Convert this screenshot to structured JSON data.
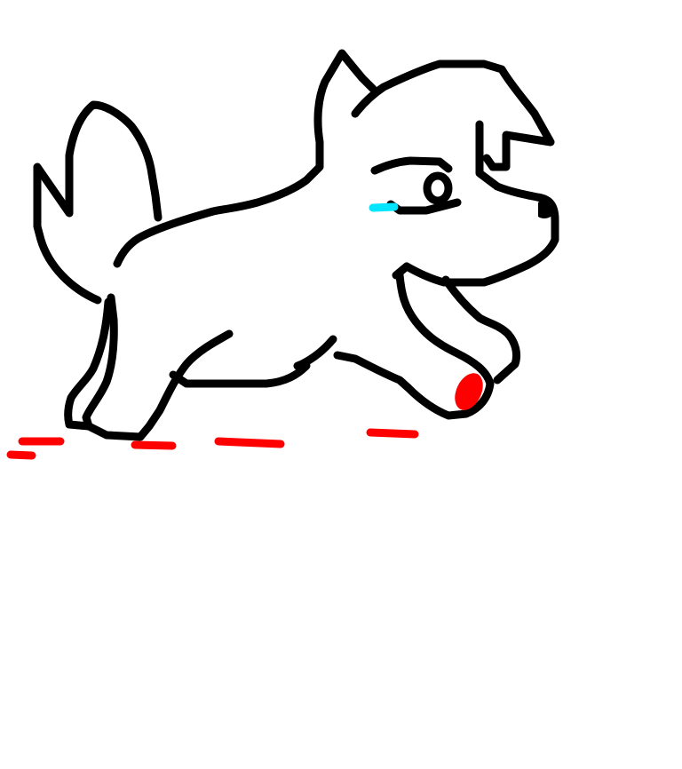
{
  "canvas": {
    "background": "#ffffff",
    "colors": {
      "outline": "#000000",
      "tear": "#00e5ff",
      "blood": "#ff0000"
    }
  }
}
